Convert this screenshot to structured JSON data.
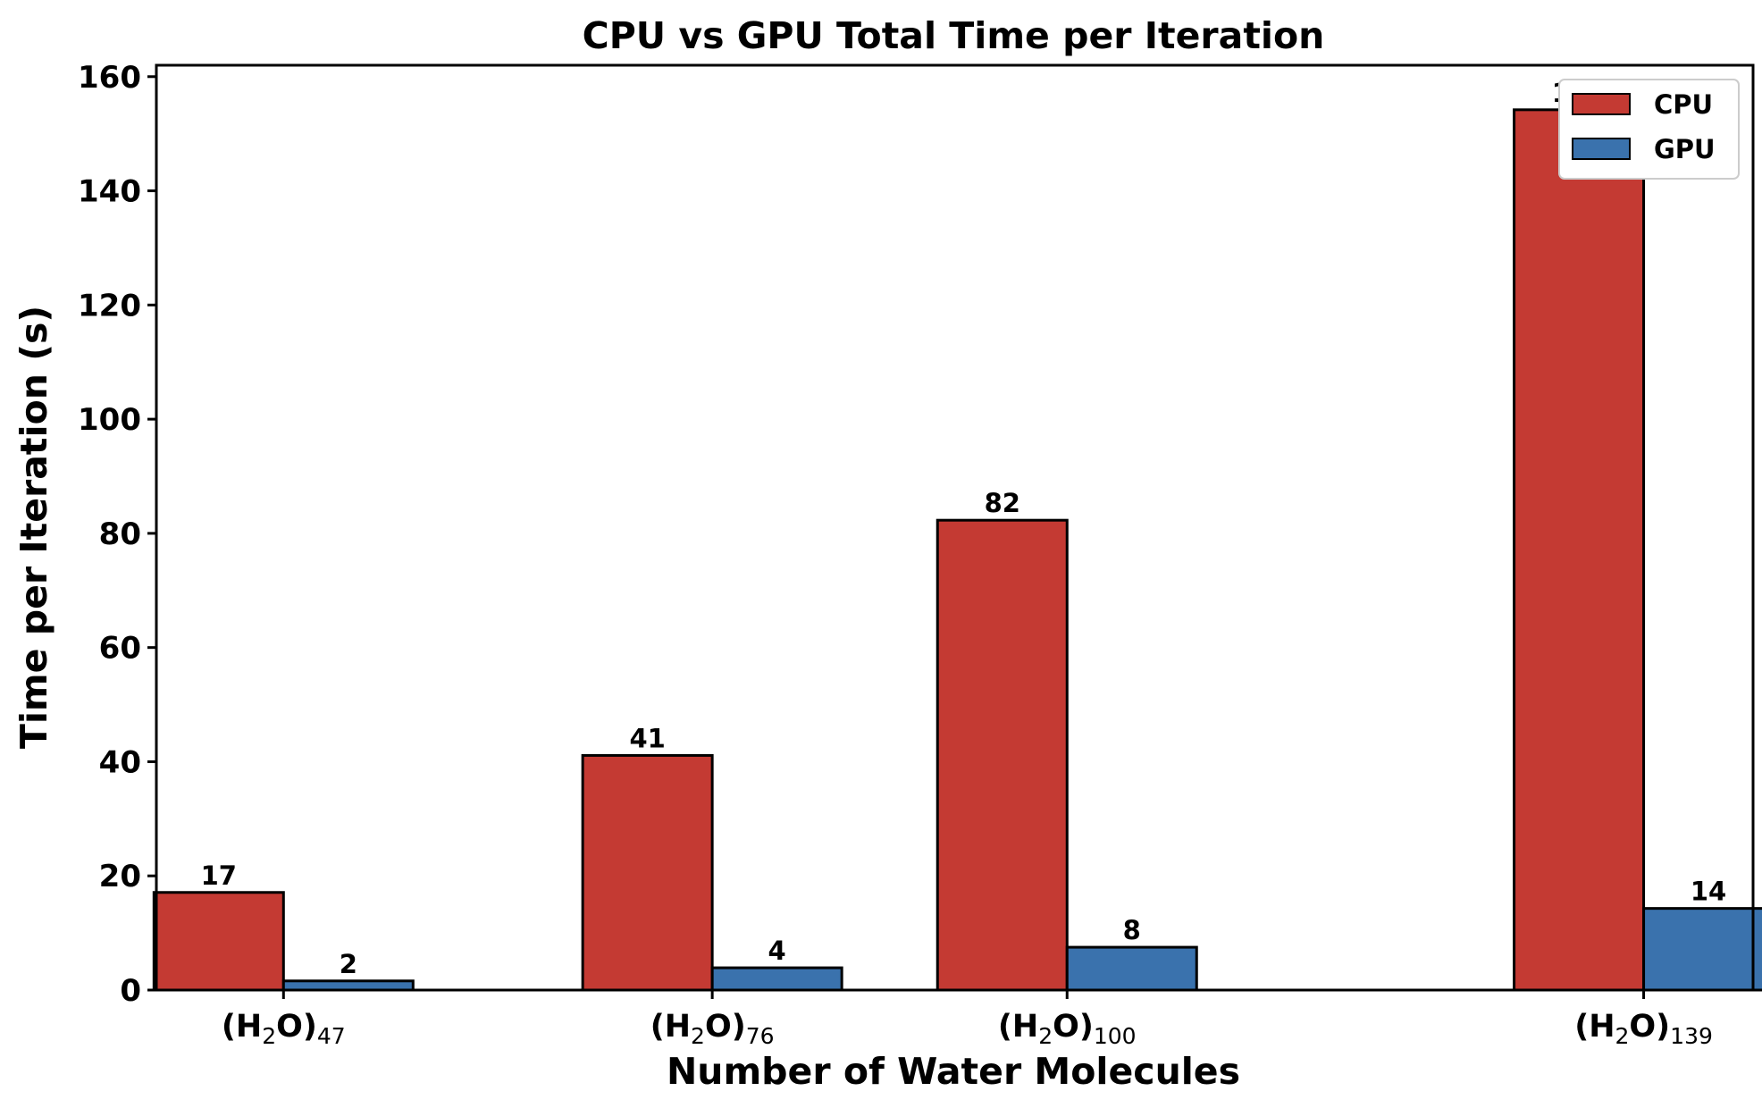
{
  "chart_data": {
    "type": "bar",
    "title": "CPU vs GPU Total Time per Iteration",
    "xlabel": "Number of Water Molecules",
    "ylabel": "Time per Iteration (s)",
    "x": [
      47,
      76,
      100,
      139
    ],
    "categories": [
      {
        "main": "(H",
        "sub1": "2",
        "mid": "O)",
        "sub2": "47"
      },
      {
        "main": "(H",
        "sub1": "2",
        "mid": "O)",
        "sub2": "76"
      },
      {
        "main": "(H",
        "sub1": "2",
        "mid": "O)",
        "sub2": "100"
      },
      {
        "main": "(H",
        "sub1": "2",
        "mid": "O)",
        "sub2": "139"
      }
    ],
    "series": [
      {
        "name": "CPU",
        "color": "#c43a33",
        "values": [
          17.1,
          41.1,
          82.3,
          154.2
        ],
        "labels": [
          "17",
          "41",
          "82",
          "154"
        ]
      },
      {
        "name": "GPU",
        "color": "#3a72ad",
        "values": [
          1.6,
          3.9,
          7.5,
          14.3
        ],
        "labels": [
          "2",
          "4",
          "8",
          "14"
        ]
      }
    ],
    "ylim": [
      0,
      162
    ],
    "yticks": [
      0,
      20,
      40,
      60,
      80,
      100,
      120,
      140,
      160
    ],
    "grid": false,
    "legend": "top-right"
  }
}
